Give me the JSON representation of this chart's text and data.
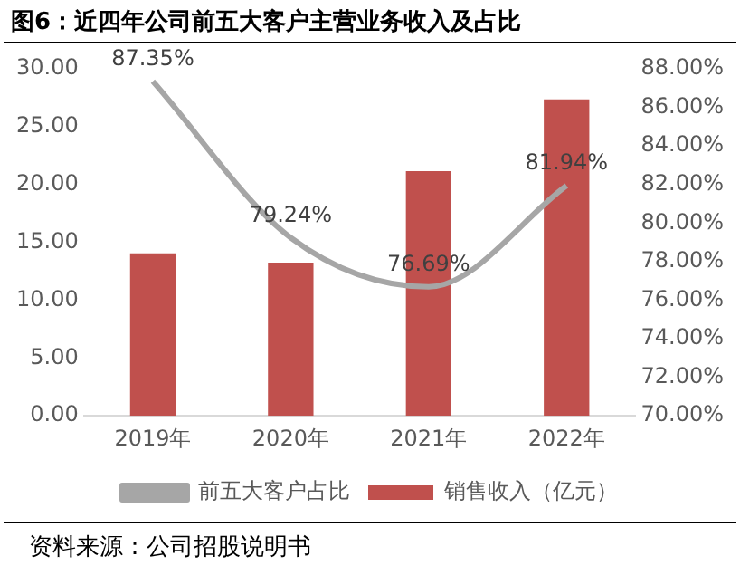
{
  "chart_data": {
    "type": "bar",
    "title": "图6：近四年公司前五大客户主营业务收入及占比",
    "categories": [
      "2019年",
      "2020年",
      "2021年",
      "2022年"
    ],
    "series": [
      {
        "name": "销售收入（亿元）",
        "color": "#c0504d",
        "values": [
          14.04,
          13.25,
          21.15,
          27.35
        ]
      },
      {
        "name": "前五大客户占比",
        "type": "line",
        "axis": "y2",
        "color": "#a6a6a6",
        "values": [
          87.35,
          79.24,
          76.69,
          81.94
        ],
        "value_labels": [
          "87.35%",
          "79.24%",
          "76.69%",
          "81.94%"
        ],
        "marker": "none"
      }
    ],
    "ylim": [
      0,
      30
    ],
    "yticks": [
      {
        "value": 0,
        "label": "0.00"
      },
      {
        "value": 5,
        "label": "5.00"
      },
      {
        "value": 10,
        "label": "10.00"
      },
      {
        "value": 15,
        "label": "15.00"
      },
      {
        "value": 20,
        "label": "20.00"
      },
      {
        "value": 25,
        "label": "25.00"
      },
      {
        "value": 30,
        "label": "30.00"
      }
    ],
    "y2lim": [
      70,
      88
    ],
    "y2ticks": [
      {
        "value": 70,
        "label": "70.00%"
      },
      {
        "value": 72,
        "label": "72.00%"
      },
      {
        "value": 74,
        "label": "74.00%"
      },
      {
        "value": 76,
        "label": "76.00%"
      },
      {
        "value": 78,
        "label": "78.00%"
      },
      {
        "value": 80,
        "label": "80.00%"
      },
      {
        "value": 82,
        "label": "82.00%"
      },
      {
        "value": 84,
        "label": "84.00%"
      },
      {
        "value": 86,
        "label": "86.00%"
      },
      {
        "value": 88,
        "label": "88.00%"
      }
    ],
    "grid": false,
    "legend": "bottom",
    "annotations": [
      "资料来源：公司招股说明书"
    ]
  }
}
